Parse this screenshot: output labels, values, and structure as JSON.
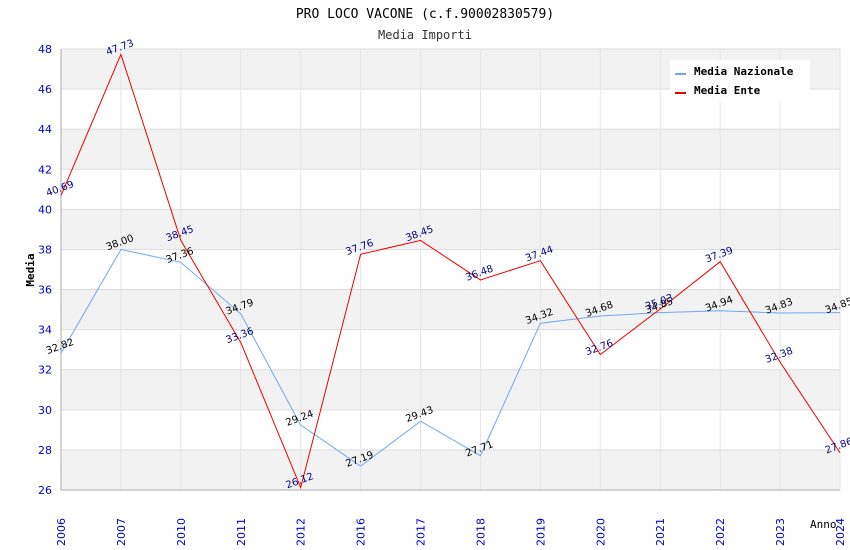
{
  "chart_data": {
    "type": "line",
    "title": "PRO LOCO VACONE (c.f.90002830579)",
    "subtitle": "Media Importi",
    "xlabel": "Anno",
    "ylabel": "Media",
    "ylim": [
      26,
      48
    ],
    "yticks": [
      "26",
      "28",
      "30",
      "32",
      "34",
      "36",
      "38",
      "40",
      "42",
      "44",
      "46",
      "48"
    ],
    "categories": [
      "2006",
      "2007",
      "2010",
      "2011",
      "2012",
      "2016",
      "2017",
      "2018",
      "2019",
      "2020",
      "2021",
      "2022",
      "2023",
      "2024"
    ],
    "grid": true,
    "legend_position": "top-right",
    "series": [
      {
        "name": "Media Nazionale",
        "color": "#6fa8e8",
        "values": [
          32.82,
          38.0,
          37.36,
          34.79,
          29.24,
          27.19,
          29.43,
          27.71,
          34.32,
          34.68,
          34.85,
          34.94,
          34.83,
          34.85
        ],
        "labels": [
          "32.82",
          "38.00",
          "37.36",
          "34.79",
          "29.24",
          "27.19",
          "29.43",
          "27.71",
          "34.32",
          "34.68",
          "34.85",
          "34.94",
          "34.83",
          "34.85"
        ]
      },
      {
        "name": "Media Ente",
        "color": "#ee0000",
        "values": [
          40.69,
          47.73,
          38.45,
          33.36,
          26.12,
          37.76,
          38.45,
          36.48,
          37.44,
          32.76,
          35.03,
          37.39,
          32.38,
          27.86
        ],
        "labels": [
          "40.69",
          "47.73",
          "38.45",
          "33.36",
          "26.12",
          "37.76",
          "38.45",
          "36.48",
          "37.44",
          "32.76",
          "35.03",
          "37.39",
          "32.38",
          "27.86"
        ]
      }
    ]
  }
}
